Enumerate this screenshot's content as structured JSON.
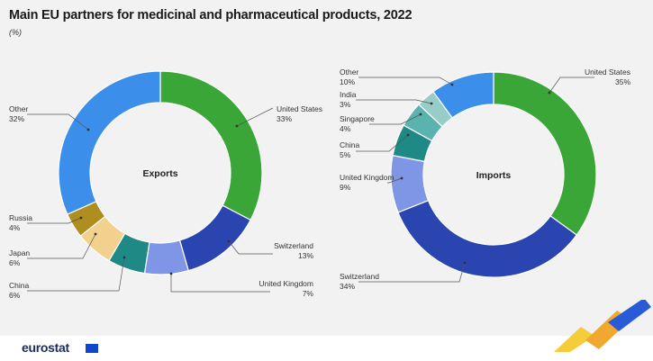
{
  "title": "Main EU partners for medicinal and pharmaceutical products, 2022",
  "subtitle": "(%)",
  "logo": "eurostat",
  "colors": {
    "United States": "#3aa637",
    "Switzerland": "#2a44b0",
    "United Kingdom": "#7f95e6",
    "China": "#1f8a85",
    "Japan": "#f2d08e",
    "Russia": "#b08d1f",
    "Other_exports": "#3b8eea",
    "Singapore": "#5bb3b0",
    "India": "#98ccc8",
    "Other_imports": "#3b8eea"
  },
  "chart_data": [
    {
      "type": "pie",
      "variant": "donut",
      "center_label": "Exports",
      "slices": [
        {
          "label": "United States",
          "value": 33,
          "value_label": "33%"
        },
        {
          "label": "Switzerland",
          "value": 13,
          "value_label": "13%"
        },
        {
          "label": "United Kingdom",
          "value": 7,
          "value_label": "7%"
        },
        {
          "label": "China",
          "value": 6,
          "value_label": "6%"
        },
        {
          "label": "Japan",
          "value": 6,
          "value_label": "6%"
        },
        {
          "label": "Russia",
          "value": 4,
          "value_label": "4%"
        },
        {
          "label": "Other",
          "value": 32,
          "value_label": "32%"
        }
      ]
    },
    {
      "type": "pie",
      "variant": "donut",
      "center_label": "Imports",
      "slices": [
        {
          "label": "United States",
          "value": 35,
          "value_label": "35%"
        },
        {
          "label": "Switzerland",
          "value": 34,
          "value_label": "34%"
        },
        {
          "label": "United Kingdom",
          "value": 9,
          "value_label": "9%"
        },
        {
          "label": "China",
          "value": 5,
          "value_label": "5%"
        },
        {
          "label": "Singapore",
          "value": 4,
          "value_label": "4%"
        },
        {
          "label": "India",
          "value": 3,
          "value_label": "3%"
        },
        {
          "label": "Other",
          "value": 10,
          "value_label": "10%"
        }
      ]
    }
  ]
}
